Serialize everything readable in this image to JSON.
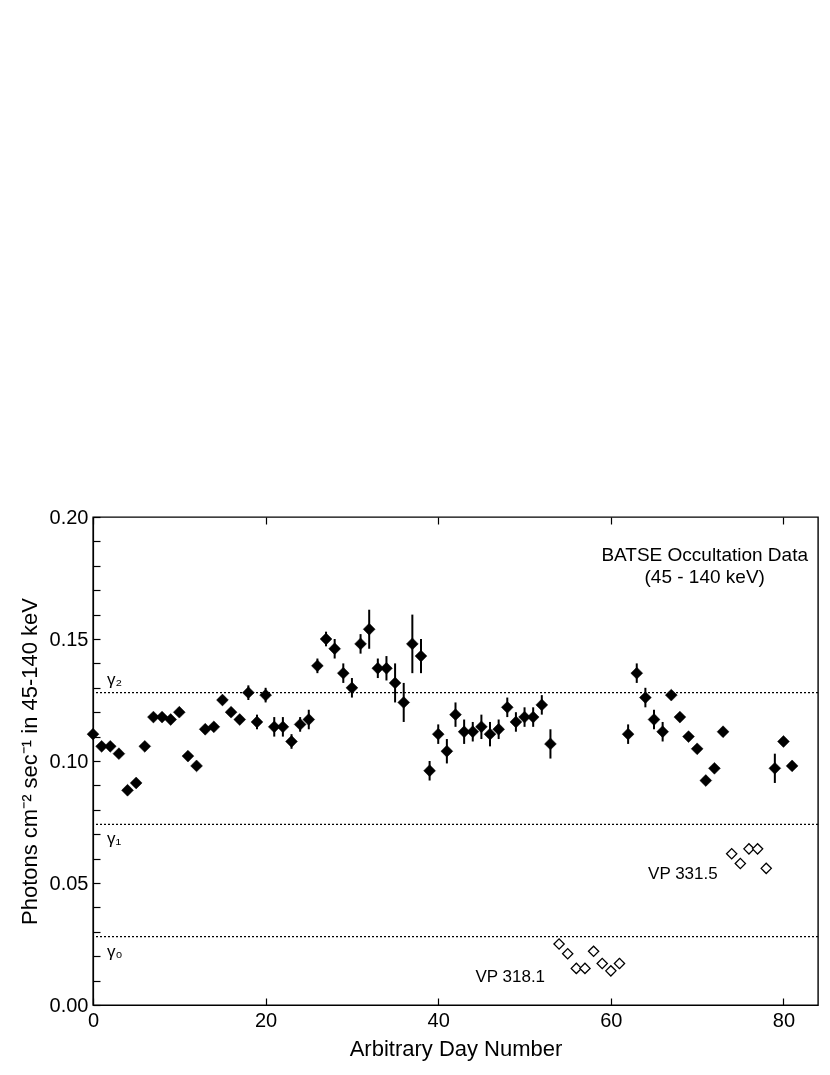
{
  "chart_data": {
    "type": "scatter",
    "marker": "diamond",
    "xlabel": "Arbitrary Day Number",
    "ylabel": "Photons cm⁻² sec⁻¹ in 45-140 keV",
    "xlim": [
      0,
      84
    ],
    "xticks": [
      0,
      20,
      40,
      60,
      80
    ],
    "ylim": [
      0,
      0.2
    ],
    "yticks": [
      {
        "value": 0,
        "label": "0.00"
      },
      {
        "value": 0.01,
        "label": null
      },
      {
        "value": 0.02,
        "label": null
      },
      {
        "value": 0.03,
        "label": null
      },
      {
        "value": 0.04,
        "label": null
      },
      {
        "value": 0.05,
        "label": "0.05"
      },
      {
        "value": 0.06,
        "label": null
      },
      {
        "value": 0.07,
        "label": null
      },
      {
        "value": 0.08,
        "label": null
      },
      {
        "value": 0.09,
        "label": null
      },
      {
        "value": 0.1,
        "label": "0.10"
      },
      {
        "value": 0.11,
        "label": null
      },
      {
        "value": 0.12,
        "label": null
      },
      {
        "value": 0.13,
        "label": null
      },
      {
        "value": 0.14,
        "label": null
      },
      {
        "value": 0.15,
        "label": "0.15"
      },
      {
        "value": 0.16,
        "label": null
      },
      {
        "value": 0.17,
        "label": null
      },
      {
        "value": 0.18,
        "label": null
      },
      {
        "value": 0.19,
        "label": null
      },
      {
        "value": 0.2,
        "label": "0.20"
      }
    ],
    "series": [
      {
        "color": "#000000",
        "x": [
          0,
          1,
          2,
          3,
          4,
          5,
          6,
          7,
          8,
          9,
          10,
          11,
          12,
          13,
          14,
          15,
          16,
          17,
          18,
          19,
          20,
          21,
          22,
          23,
          24,
          25,
          26,
          27,
          28,
          29,
          30,
          31,
          32,
          33,
          34,
          35,
          36,
          37,
          38,
          39,
          40,
          41,
          42,
          43,
          44,
          45,
          46,
          47,
          48,
          49,
          50,
          51,
          52,
          53,
          62,
          63,
          64,
          65,
          66,
          67,
          68,
          69,
          70,
          71,
          72,
          73,
          79,
          80,
          81
        ],
        "values": [
          0.111,
          0.106,
          0.106,
          0.103,
          0.088,
          0.091,
          0.106,
          0.118,
          0.118,
          0.117,
          0.12,
          0.102,
          0.098,
          0.113,
          0.114,
          0.125,
          0.12,
          0.117,
          0.128,
          0.116,
          0.127,
          0.114,
          0.114,
          0.108,
          0.115,
          0.117,
          0.139,
          0.15,
          0.146,
          0.136,
          0.13,
          0.148,
          0.154,
          0.138,
          0.138,
          0.132,
          0.124,
          0.148,
          0.143,
          0.096,
          0.111,
          0.104,
          0.119,
          0.112,
          0.112,
          0.114,
          0.111,
          0.113,
          0.122,
          0.116,
          0.118,
          0.118,
          0.123,
          0.107,
          0.111,
          0.136,
          0.126,
          0.117,
          0.112,
          0.127,
          0.118,
          0.11,
          0.105,
          0.092,
          0.097,
          0.112,
          0.097,
          0.108,
          0.098
        ],
        "errors": [
          null,
          null,
          null,
          null,
          null,
          null,
          null,
          null,
          null,
          null,
          null,
          null,
          null,
          null,
          null,
          null,
          null,
          null,
          0.003,
          0.003,
          0.003,
          0.004,
          0.004,
          0.003,
          0.003,
          0.004,
          0.003,
          0.003,
          0.004,
          0.004,
          0.004,
          0.004,
          0.008,
          0.004,
          0.005,
          0.008,
          0.008,
          0.012,
          0.007,
          0.004,
          0.004,
          0.005,
          0.005,
          0.005,
          0.004,
          0.005,
          0.005,
          0.004,
          0.004,
          0.004,
          0.004,
          0.004,
          0.004,
          0.006,
          0.004,
          0.004,
          0.004,
          0.004,
          0.004,
          null,
          null,
          null,
          null,
          null,
          null,
          null,
          0.006,
          null,
          null
        ]
      },
      {
        "name": "VP 318.1",
        "color": "#000000",
        "x": [
          54,
          55,
          56,
          57,
          58,
          59,
          60,
          61
        ],
        "values": [
          0.025,
          0.021,
          0.015,
          0.015,
          0.022,
          0.017,
          0.014,
          0.017
        ],
        "errors": [
          null,
          null,
          0.002,
          null,
          null,
          null,
          null,
          0.002
        ]
      },
      {
        "name": "VP 331.5",
        "color": "#000000",
        "x": [
          74,
          75,
          76,
          77,
          78
        ],
        "values": [
          0.062,
          0.058,
          0.064,
          0.064,
          0.056
        ]
      }
    ],
    "ref_lines": [
      {
        "axis": "y",
        "value": 0.128,
        "label": "γ₂",
        "color": "#000000",
        "line_style": "dotted"
      },
      {
        "axis": "y",
        "value": 0.074,
        "label": "γ₁",
        "color": "#000000",
        "line_style": "dotted"
      },
      {
        "axis": "y",
        "value": 0.028,
        "label": "γ₀",
        "color": "#000000",
        "line_style": "dotted"
      }
    ],
    "annotations": [
      "BATSE Occultation Data",
      "(45 - 140 keV)"
    ]
  }
}
